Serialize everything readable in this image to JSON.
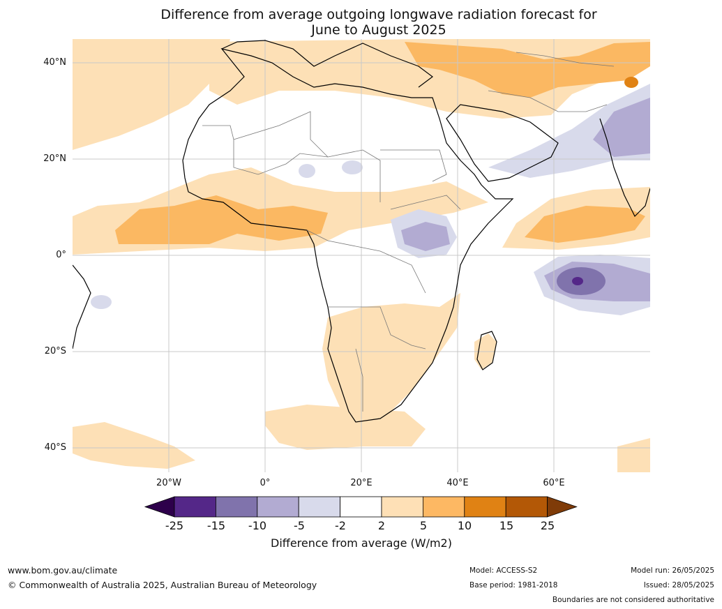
{
  "title_line1": "Difference from average outgoing longwave radiation forecast for",
  "title_line2": "June to August 2025",
  "map": {
    "lat_ticks": [
      {
        "value": 40,
        "label": "40°N"
      },
      {
        "value": 20,
        "label": "20°N"
      },
      {
        "value": 0,
        "label": "0°"
      },
      {
        "value": -20,
        "label": "20°S"
      },
      {
        "value": -40,
        "label": "40°S"
      }
    ],
    "lon_ticks": [
      {
        "value": -20,
        "label": "20°W"
      },
      {
        "value": 0,
        "label": "0°"
      },
      {
        "value": 20,
        "label": "20°E"
      },
      {
        "value": 40,
        "label": "40°E"
      },
      {
        "value": 60,
        "label": "60°E"
      }
    ],
    "lon_range": [
      -40,
      80
    ],
    "lat_range": [
      -45,
      45
    ],
    "anomaly_regions": [
      {
        "name": "north-atlantic-positive",
        "value": 3,
        "color": "#fde0b6"
      },
      {
        "name": "mediterranean-central-asia-positive",
        "value": 3,
        "color": "#fde0b6"
      },
      {
        "name": "central-asia-positive-core",
        "value": 7,
        "color": "#fbb862"
      },
      {
        "name": "west-africa-positive",
        "value": 7,
        "color": "#fbb862"
      },
      {
        "name": "arabian-sea-positive",
        "value": 7,
        "color": "#fbb862"
      },
      {
        "name": "southern-africa-positive",
        "value": 3,
        "color": "#fde0b6"
      },
      {
        "name": "south-atlantic-positive",
        "value": 3,
        "color": "#fde0b6"
      },
      {
        "name": "india-negative",
        "value": -6,
        "color": "#b2abd2"
      },
      {
        "name": "east-africa-negative",
        "value": -6,
        "color": "#b2abd2"
      },
      {
        "name": "indian-ocean-negative",
        "value": -12,
        "color": "#8073ac"
      },
      {
        "name": "indian-ocean-negative-core",
        "value": -20,
        "color": "#542788"
      }
    ]
  },
  "colorbar": {
    "ticks": [
      "-25",
      "-15",
      "-10",
      "-5",
      "-2",
      "2",
      "5",
      "10",
      "15",
      "25"
    ],
    "colors": [
      "#2d004b",
      "#542788",
      "#8073ac",
      "#b2abd2",
      "#d8daeb",
      "#ffffff",
      "#fee0b6",
      "#fdb863",
      "#e08214",
      "#b35806",
      "#7f3b08"
    ],
    "label": "Difference from average (W/m2)"
  },
  "footer": {
    "website": "www.bom.gov.au/climate",
    "copyright": "© Commonwealth of Australia 2025, Australian Bureau of Meteorology",
    "model": "Model: ACCESS-S2",
    "base_period": "Base period: 1981-2018",
    "model_run": "Model run: 26/05/2025",
    "issued": "Issued: 28/05/2025",
    "disclaimer": "Boundaries are not considered authoritative"
  }
}
